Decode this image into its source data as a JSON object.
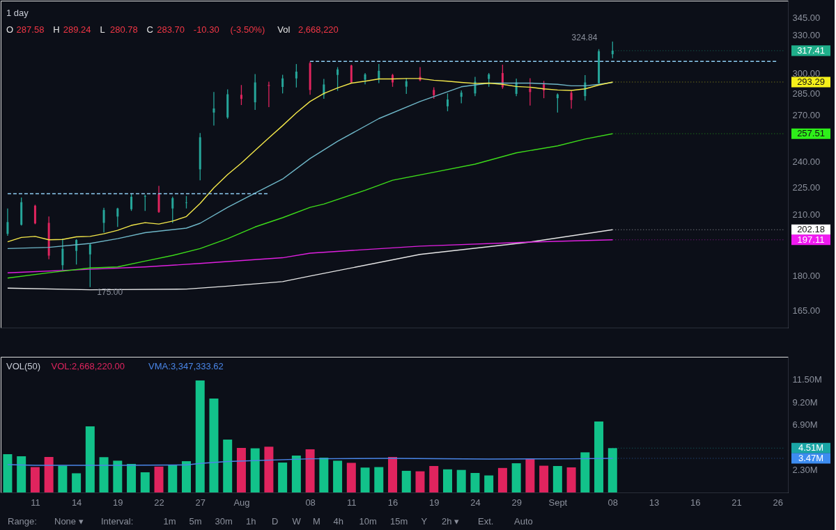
{
  "chart_data": [
    {
      "type": "candlestick",
      "title": "1 day",
      "subtitle": "O 287.58 H 289.24 L 280.78 C 283.70 -10.30 (-3.50%) Vol 2,668,220",
      "categories": [
        null,
        null,
        null,
        null,
        null,
        null,
        null,
        null,
        null,
        null,
        null,
        null,
        null,
        null,
        null,
        null,
        null,
        null,
        null,
        null,
        null,
        null,
        null,
        null,
        null,
        null,
        null,
        null,
        null,
        null,
        null,
        null,
        null,
        null,
        null,
        null,
        null,
        null,
        null,
        null,
        null,
        null,
        null,
        null,
        null,
        null,
        null,
        null,
        null,
        null,
        null,
        null,
        null,
        null,
        null,
        null,
        null
      ],
      "ohlc": [
        [
          200.1,
          213.3,
          199.1,
          206.1
        ],
        [
          204.7,
          219.3,
          204.3,
          216.7
        ],
        [
          214.8,
          215.3,
          205.0,
          205.4
        ],
        [
          205.7,
          209.0,
          187.7,
          189.4
        ],
        [
          184.9,
          197.7,
          182.7,
          192.7
        ],
        [
          191.7,
          197.4,
          185.2,
          197.0
        ],
        [
          190.0,
          195.3,
          175.0,
          194.7
        ],
        [
          205.7,
          213.7,
          200.8,
          212.5
        ],
        [
          209.0,
          213.7,
          203.6,
          213.3
        ],
        [
          212.9,
          221.2,
          212.0,
          219.7
        ],
        [
          219.7,
          220.8,
          212.0,
          220.1
        ],
        [
          221.2,
          225.8,
          211.0,
          211.4
        ],
        [
          213.3,
          219.7,
          205.7,
          218.9
        ],
        [
          216.3,
          220.1,
          213.3,
          216.6
        ],
        [
          235.4,
          257.9,
          229.0,
          255.2
        ],
        [
          271.6,
          286.0,
          262.8,
          274.4
        ],
        [
          268.3,
          287.9,
          267.4,
          284.4
        ],
        [
          284.0,
          291.1,
          276.8,
          281.1
        ],
        [
          278.7,
          299.2,
          273.4,
          293.0
        ],
        [
          291.1,
          293.5,
          275.3,
          290.5
        ],
        [
          289.7,
          298.7,
          285.0,
          296.0
        ],
        [
          296.0,
          306.9,
          289.3,
          301.1
        ],
        [
          307.6,
          308.8,
          284.1,
          287.5
        ],
        [
          284.0,
          295.6,
          281.2,
          291.5
        ],
        [
          298.6,
          304.5,
          286.9,
          302.8
        ],
        [
          305.8,
          306.4,
          292.5,
          293.0
        ],
        [
          295.0,
          300.0,
          291.6,
          299.0
        ],
        [
          295.6,
          307.0,
          292.5,
          301.7
        ],
        [
          298.6,
          299.4,
          289.8,
          293.0
        ],
        [
          289.9,
          296.1,
          284.7,
          293.9
        ],
        [
          297.2,
          304.5,
          293.9,
          294.6
        ],
        [
          287.5,
          289.5,
          281.2,
          283.8
        ],
        [
          275.9,
          285.0,
          272.5,
          280.7
        ],
        [
          282.6,
          287.2,
          278.0,
          285.6
        ],
        [
          285.0,
          297.2,
          283.1,
          293.6
        ],
        [
          295.6,
          300.0,
          289.8,
          299.0
        ],
        [
          300.0,
          306.4,
          288.3,
          289.5
        ],
        [
          284.7,
          295.8,
          283.1,
          293.0
        ],
        [
          288.7,
          296.1,
          276.4,
          286.0
        ],
        [
          291.6,
          294.1,
          281.6,
          287.2
        ],
        [
          281.6,
          285.0,
          271.6,
          284.3
        ],
        [
          285.5,
          286.9,
          274.3,
          280.3
        ],
        [
          283.1,
          298.5,
          280.0,
          293.0
        ],
        [
          292.5,
          318.6,
          292.1,
          317.0
        ],
        [
          314.6,
          324.84,
          311.4,
          317.41
        ],
        null,
        null,
        null,
        null,
        null,
        null,
        null,
        null,
        null,
        null,
        null,
        null
      ],
      "colors": [
        "#26a69a",
        "#26a69a",
        "#e0245e",
        "#e0245e",
        "#26a69a",
        "#26a69a",
        "#26a69a",
        "#26a69a",
        "#26a69a",
        "#26a69a",
        "#26a69a",
        "#e0245e",
        "#26a69a",
        "#26a69a",
        "#26a69a",
        "#26a69a",
        "#26a69a",
        "#e0245e",
        "#26a69a",
        "#e0245e",
        "#26a69a",
        "#26a69a",
        "#e0245e",
        "#26a69a",
        "#26a69a",
        "#e0245e",
        "#26a69a",
        "#26a69a",
        "#e0245e",
        "#26a69a",
        "#e0245e",
        "#e0245e",
        "#26a69a",
        "#26a69a",
        "#26a69a",
        "#26a69a",
        "#e0245e",
        "#26a69a",
        "#e0245e",
        "#e0245e",
        "#26a69a",
        "#e0245e",
        "#26a69a",
        "#26a69a",
        "#26a69a",
        null,
        null,
        null,
        null,
        null,
        null,
        null,
        null,
        null,
        null,
        null,
        null
      ],
      "log": true,
      "ylim": [
        158,
        360
      ],
      "yticks": [
        {
          "value": 165,
          "label": "165.00"
        },
        {
          "value": 180,
          "label": "180.00"
        },
        {
          "value": 210,
          "label": "210.00"
        },
        {
          "value": 225,
          "label": "225.00"
        },
        {
          "value": 240,
          "label": "240.00"
        },
        {
          "value": 270,
          "label": "270.00"
        },
        {
          "value": 285,
          "label": "285.00"
        },
        {
          "value": 300,
          "label": "300.00"
        },
        {
          "value": 330,
          "label": "330.00"
        },
        {
          "value": 345,
          "label": "345.00"
        }
      ],
      "tick_labels": "y",
      "series": [
        {
          "type": "line",
          "color": "#e8e8e8",
          "values": [
            174.5,
            null,
            null,
            null,
            null,
            null,
            173.8,
            null,
            null,
            null,
            null,
            null,
            null,
            174.1,
            null,
            null,
            175.4,
            null,
            null,
            null,
            177.4,
            null,
            179.9,
            null,
            null,
            null,
            null,
            null,
            null,
            null,
            190.0,
            null,
            null,
            null,
            null,
            null,
            null,
            null,
            196.0,
            null,
            null,
            null,
            null,
            null,
            202.18,
            null,
            null,
            null,
            null,
            null,
            null,
            null,
            null,
            null,
            null,
            null,
            null
          ]
        },
        {
          "type": "line",
          "color": "#e020e0",
          "values": [
            181.4,
            null,
            null,
            null,
            null,
            null,
            183.0,
            null,
            null,
            null,
            184.1,
            null,
            null,
            null,
            185.7,
            null,
            null,
            null,
            null,
            null,
            188.4,
            null,
            190.6,
            null,
            null,
            null,
            null,
            null,
            null,
            null,
            194.0,
            null,
            null,
            null,
            null,
            null,
            null,
            null,
            196.0,
            null,
            null,
            null,
            null,
            null,
            197.11,
            null,
            null,
            null,
            null,
            null,
            null,
            null,
            null,
            null,
            null,
            null,
            null
          ]
        },
        {
          "type": "line",
          "color": "#3ddc1a",
          "values": [
            179.0,
            null,
            null,
            181.4,
            null,
            null,
            183.6,
            null,
            184.1,
            null,
            186.8,
            null,
            189.5,
            null,
            192.8,
            null,
            197.7,
            null,
            203.6,
            null,
            208.4,
            null,
            213.9,
            215.7,
            null,
            null,
            223.3,
            null,
            229.0,
            null,
            null,
            233.7,
            null,
            null,
            238.5,
            null,
            null,
            245.4,
            null,
            null,
            249.7,
            null,
            254.1,
            null,
            257.51,
            null,
            null,
            null,
            null,
            null,
            null,
            null,
            null,
            null,
            null,
            null,
            null
          ]
        },
        {
          "type": "line",
          "color": "#6fb8c9",
          "values": [
            192.8,
            null,
            null,
            193.4,
            null,
            null,
            195.3,
            null,
            197.7,
            null,
            200.7,
            null,
            null,
            203.0,
            205.5,
            null,
            213.9,
            null,
            221.7,
            null,
            229.7,
            null,
            241.9,
            null,
            252.6,
            null,
            null,
            267.5,
            null,
            null,
            279.3,
            null,
            null,
            289.8,
            null,
            292.5,
            null,
            null,
            292.5,
            null,
            291.6,
            290.5,
            290.5,
            291.6,
            293.0,
            null,
            null,
            null,
            null,
            null,
            null,
            null,
            null,
            null,
            null,
            null,
            null
          ]
        },
        {
          "type": "line",
          "color": "#f5e94a",
          "values": [
            196.1,
            198.3,
            198.8,
            197.1,
            197.3,
            198.6,
            198.8,
            200.1,
            201.9,
            204.4,
            205.8,
            205.1,
            206.6,
            209.0,
            216.0,
            224.7,
            232.3,
            239.1,
            246.9,
            254.8,
            262.8,
            271.4,
            279.3,
            285.0,
            289.0,
            292.5,
            293.9,
            295.6,
            295.6,
            295.9,
            295.9,
            294.6,
            293.9,
            293.0,
            292.3,
            292.5,
            291.6,
            290.0,
            289.5,
            288.3,
            287.5,
            287.2,
            288.3,
            291.1,
            293.29,
            null,
            null,
            null,
            null,
            null,
            null,
            null,
            null,
            null,
            null,
            null,
            null
          ]
        },
        {
          "type": "line",
          "color": "#8fd0f5",
          "line_style": "dashed",
          "values": [
            221.4,
            221.4,
            221.4,
            221.4,
            221.4,
            221.4,
            221.4,
            221.4,
            221.4,
            221.4,
            221.4,
            221.4,
            221.4,
            221.4,
            221.4,
            221.4,
            221.4,
            221.4,
            221.4,
            221.4,
            null,
            null,
            null,
            null,
            null,
            null,
            null,
            null,
            null,
            null,
            null,
            null,
            null,
            null,
            null,
            null,
            null,
            null,
            null,
            null,
            null,
            null,
            null,
            null,
            null,
            null,
            null,
            null,
            null,
            null,
            null,
            null,
            null,
            null,
            null,
            null,
            null
          ]
        },
        {
          "type": "line",
          "color": "#8fd0f5",
          "line_style": "dashed",
          "values": [
            null,
            null,
            null,
            null,
            null,
            null,
            null,
            null,
            null,
            null,
            null,
            null,
            null,
            null,
            null,
            null,
            null,
            null,
            null,
            null,
            null,
            null,
            309,
            309,
            309,
            309,
            309,
            309,
            309,
            309,
            309,
            309,
            309,
            309,
            309,
            309,
            309,
            309,
            309,
            309,
            309,
            309,
            309,
            309,
            309,
            309,
            309,
            309,
            309,
            309,
            309,
            309,
            309,
            309,
            309,
            309,
            309
          ]
        }
      ],
      "ref_lines": [
        {
          "axis": "y",
          "value": 317.41,
          "label": "317.41",
          "color": "#1fae8a",
          "line_style": "dotted"
        },
        {
          "axis": "y",
          "value": 293.29,
          "label": "293.29",
          "color": "#f5f01a",
          "line_style": "dotted"
        },
        {
          "axis": "y",
          "value": 257.51,
          "label": "257.51",
          "color": "#2ef01a",
          "line_style": "dotted"
        },
        {
          "axis": "y",
          "value": 202.18,
          "label": "202.18",
          "color": "#ffffff",
          "line_style": "dotted"
        },
        {
          "axis": "y",
          "value": 197.11,
          "label": "197.11",
          "color": "#f01af0",
          "line_style": "dotted"
        }
      ],
      "annotations": [
        "324.84",
        "175.00"
      ]
    },
    {
      "type": "bar",
      "title": "VOL(50)",
      "categories": [
        null,
        null,
        "11",
        null,
        null,
        "14",
        null,
        null,
        "19",
        null,
        null,
        "22",
        null,
        null,
        "27",
        null,
        null,
        "Aug",
        null,
        null,
        null,
        null,
        "08",
        null,
        null,
        "11",
        null,
        null,
        "16",
        null,
        null,
        "19",
        null,
        null,
        "24",
        null,
        null,
        "29",
        null,
        null,
        "Sept",
        null,
        null,
        null,
        "08",
        null,
        null,
        "13",
        null,
        null,
        "16",
        null,
        null,
        "21",
        null,
        null,
        "26"
      ],
      "ylim": [
        0,
        13.8
      ],
      "yticks": [
        {
          "value": 2.3,
          "label": "2.30M"
        },
        {
          "value": 6.9,
          "label": "6.90M"
        },
        {
          "value": 9.2,
          "label": "9.20M"
        },
        {
          "value": 11.5,
          "label": "11.50M"
        }
      ],
      "series": [
        {
          "name": "VOL:2,668,220.00",
          "type": "bar",
          "color": "#e0245e",
          "colors": [
            "#12c28a",
            "#12c28a",
            "#e0245e",
            "#e0245e",
            "#12c28a",
            "#12c28a",
            "#12c28a",
            "#12c28a",
            "#12c28a",
            "#12c28a",
            "#12c28a",
            "#e0245e",
            "#12c28a",
            "#12c28a",
            "#12c28a",
            "#12c28a",
            "#12c28a",
            "#e0245e",
            "#12c28a",
            "#e0245e",
            "#12c28a",
            "#12c28a",
            "#e0245e",
            "#12c28a",
            "#12c28a",
            "#e0245e",
            "#12c28a",
            "#12c28a",
            "#e0245e",
            "#12c28a",
            "#e0245e",
            "#e0245e",
            "#12c28a",
            "#12c28a",
            "#12c28a",
            "#12c28a",
            "#e0245e",
            "#12c28a",
            "#e0245e",
            "#e0245e",
            "#12c28a",
            "#e0245e",
            "#12c28a",
            "#12c28a",
            "#12c28a",
            null,
            null,
            null,
            null,
            null,
            null,
            null,
            null,
            null,
            null,
            null,
            null
          ],
          "values": [
            3.89,
            3.68,
            2.58,
            3.61,
            2.72,
            1.95,
            6.72,
            3.59,
            3.23,
            2.9,
            2.05,
            2.63,
            2.83,
            3.18,
            11.39,
            9.55,
            5.38,
            4.53,
            4.49,
            4.65,
            3.04,
            3.75,
            4.39,
            3.54,
            3.23,
            3.01,
            2.53,
            2.58,
            3.61,
            2.2,
            2.15,
            2.69,
            2.35,
            2.29,
            1.98,
            1.73,
            2.49,
            2.97,
            3.45,
            2.72,
            2.69,
            2.55,
            4.08,
            7.22,
            4.51,
            null,
            null,
            null,
            null,
            null,
            null,
            null,
            null,
            null,
            null,
            null,
            null
          ]
        },
        {
          "name": "VMA:3,347,333.62",
          "type": "line",
          "color": "#4a86e8",
          "values": [
            2.83,
            null,
            2.76,
            null,
            null,
            null,
            null,
            null,
            2.76,
            null,
            null,
            null,
            null,
            2.8,
            2.95,
            null,
            3.15,
            null,
            null,
            null,
            null,
            null,
            3.42,
            null,
            null,
            null,
            null,
            null,
            3.47,
            null,
            null,
            null,
            null,
            null,
            null,
            3.4,
            null,
            null,
            null,
            null,
            null,
            3.42,
            null,
            null,
            3.47,
            null,
            null,
            null,
            null,
            null,
            null,
            null,
            null,
            null,
            null,
            null,
            null
          ]
        }
      ],
      "ref_lines": [
        {
          "axis": "y",
          "value": 4.51,
          "label": "4.51M",
          "color": "#1aa6a6",
          "line_style": "dotted"
        },
        {
          "axis": "y",
          "value": 3.47,
          "label": "3.47M",
          "color": "#3d8cf0",
          "line_style": "dotted"
        }
      ],
      "annotations": [
        "Range:",
        "None ▾",
        "Interval:",
        "1m",
        "5m",
        "30m",
        "1h",
        "D",
        "W",
        "M",
        "4h",
        "10m",
        "15m",
        "Y",
        "2h ▾",
        "Ext.",
        "Auto"
      ]
    }
  ]
}
